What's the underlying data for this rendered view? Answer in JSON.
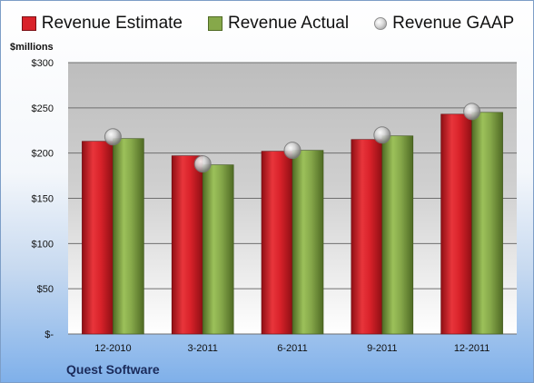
{
  "legend": {
    "estimate": "Revenue Estimate",
    "actual": "Revenue Actual",
    "gaap": "Revenue GAAP"
  },
  "unit_label": "$millions",
  "company": "Quest Software",
  "colors": {
    "estimate": "#d9222a",
    "actual": "#86a84a",
    "gaap": "#c0c0c0"
  },
  "chart_data": {
    "type": "bar",
    "categories": [
      "12-2010",
      "3-2011",
      "6-2011",
      "9-2011",
      "12-2011"
    ],
    "series": [
      {
        "name": "Revenue Estimate",
        "values": [
          213,
          197,
          202,
          215,
          243
        ]
      },
      {
        "name": "Revenue Actual",
        "values": [
          216,
          187,
          203,
          219,
          245
        ]
      },
      {
        "name": "Revenue GAAP",
        "values": [
          218,
          188,
          203,
          220,
          246
        ]
      }
    ],
    "ylabel": "$millions",
    "ylim": [
      0,
      300
    ],
    "yticks": [
      0,
      50,
      100,
      150,
      200,
      250,
      300
    ],
    "ytick_labels": [
      "$-",
      "$50",
      "$100",
      "$150",
      "$200",
      "$250",
      "$300"
    ],
    "grid": true,
    "legend": "top"
  }
}
